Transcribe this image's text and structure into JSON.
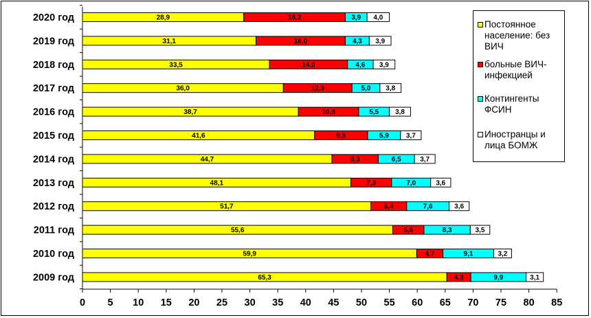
{
  "chart_data": {
    "type": "bar",
    "orientation": "horizontal",
    "stacked": true,
    "categories": [
      "2020 год",
      "2019 год",
      "2018 год",
      "2017 год",
      "2016 год",
      "2015 год",
      "2014 год",
      "2013 год",
      "2012 год",
      "2011 год",
      "2010 год",
      "2009 год"
    ],
    "series": [
      {
        "name": "Постоянное население: без ВИЧ",
        "color": "#ffff00",
        "labels": [
          "28,9",
          "31,1",
          "33,5",
          "36,0",
          "38,7",
          "41,6",
          "44,7",
          "48,1",
          "51,7",
          "55,6",
          "59,9",
          "65,3"
        ],
        "values": [
          28.9,
          31.1,
          33.5,
          36.0,
          38.7,
          41.6,
          44.7,
          48.1,
          51.7,
          55.6,
          59.9,
          65.3
        ]
      },
      {
        "name": "больные ВИЧ-инфекцией",
        "color": "#ff0000",
        "labels": [
          "18,2",
          "16,0",
          "14,0",
          "12,3",
          "10,8",
          "9,5",
          "8,3",
          "7,3",
          "6,4",
          "5,6",
          "4,7",
          "4,3"
        ],
        "values": [
          18.2,
          16.0,
          14.0,
          12.3,
          10.8,
          9.5,
          8.3,
          7.3,
          6.4,
          5.6,
          4.7,
          4.3
        ]
      },
      {
        "name": "Контингенты ФСИН",
        "color": "#00ffff",
        "labels": [
          "3,9",
          "4,3",
          "4,6",
          "5,0",
          "5,5",
          "5,9",
          "6,5",
          "7,0",
          "7,6",
          "8,3",
          "9,1",
          "9,9"
        ],
        "values": [
          3.9,
          4.3,
          4.6,
          5.0,
          5.5,
          5.9,
          6.5,
          7.0,
          7.6,
          8.3,
          9.1,
          9.9
        ]
      },
      {
        "name": "Иностранцы и лица БОМЖ",
        "color": "#ffffff",
        "labels": [
          "4,0",
          "3,9",
          "3,9",
          "3,8",
          "3,8",
          "3,7",
          "3,7",
          "3,6",
          "3,6",
          "3,5",
          "3,2",
          "3,1"
        ],
        "values": [
          4.0,
          3.9,
          3.9,
          3.8,
          3.8,
          3.7,
          3.7,
          3.6,
          3.6,
          3.5,
          3.2,
          3.1
        ]
      }
    ],
    "xlim": [
      0,
      85
    ],
    "xticks": [
      "0",
      "5",
      "10",
      "15",
      "20",
      "25",
      "30",
      "35",
      "40",
      "45",
      "50",
      "55",
      "60",
      "65",
      "70",
      "75",
      "80",
      "85"
    ],
    "grid": false,
    "legend_position": "top-right",
    "legend_lines": [
      [
        "Постоянное",
        "население: без",
        "ВИЧ"
      ],
      [
        "больные ВИЧ-",
        "инфекцией"
      ],
      [
        "Контингенты",
        "ФСИН"
      ],
      [
        "Иностранцы и",
        "лица БОМЖ"
      ]
    ]
  }
}
